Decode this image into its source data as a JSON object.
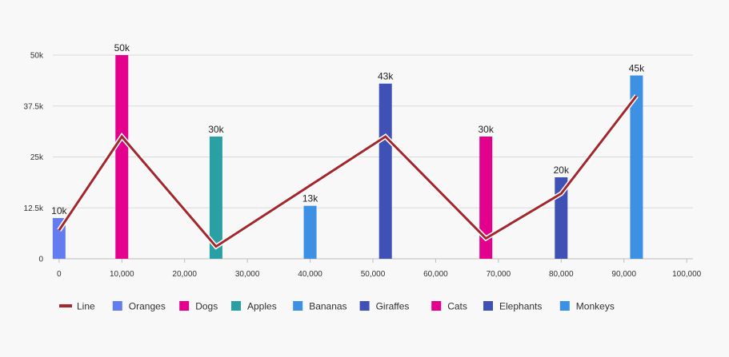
{
  "chart_data": {
    "type": "bar",
    "x_ticks": [
      0,
      10000,
      20000,
      30000,
      40000,
      50000,
      60000,
      70000,
      80000,
      90000,
      100000
    ],
    "x_tick_labels": [
      "0",
      "10,000",
      "20,000",
      "30,000",
      "40,000",
      "50,000",
      "60,000",
      "70,000",
      "80,000",
      "90,000",
      "100,000"
    ],
    "xlim": [
      -1000,
      101000
    ],
    "y_ticks": [
      0,
      12500,
      25000,
      37500,
      50000
    ],
    "y_tick_labels": [
      "0",
      "12.5k",
      "25k",
      "37.5k",
      "50k"
    ],
    "ylim": [
      0,
      50000
    ],
    "grid": true,
    "legend_position": "bottom-left",
    "bars": [
      {
        "name": "Oranges",
        "x": 0,
        "value": 10000,
        "label": "10k",
        "color": "#637cef"
      },
      {
        "name": "Dogs",
        "x": 10000,
        "value": 50000,
        "label": "50k",
        "color": "#e3008c"
      },
      {
        "name": "Apples",
        "x": 25000,
        "value": 30000,
        "label": "30k",
        "color": "#2aa0a4"
      },
      {
        "name": "Bananas",
        "x": 40000,
        "value": 13000,
        "label": "13k",
        "color": "#3c91e5"
      },
      {
        "name": "Giraffes",
        "x": 52000,
        "value": 43000,
        "label": "43k",
        "color": "#3f51b5"
      },
      {
        "name": "Cats",
        "x": 68000,
        "value": 30000,
        "label": "30k",
        "color": "#e3008c"
      },
      {
        "name": "Elephants",
        "x": 80000,
        "value": 20000,
        "label": "20k",
        "color": "#3f51b5"
      },
      {
        "name": "Monkeys",
        "x": 92000,
        "value": 45000,
        "label": "45k",
        "color": "#3c91e5"
      }
    ],
    "line": {
      "name": "Line",
      "color": "#a4262c",
      "points": [
        {
          "x": 0,
          "y": 7000
        },
        {
          "x": 10000,
          "y": 30000
        },
        {
          "x": 25000,
          "y": 3000
        },
        {
          "x": 52000,
          "y": 30000
        },
        {
          "x": 68000,
          "y": 5000
        },
        {
          "x": 80000,
          "y": 16000
        },
        {
          "x": 92000,
          "y": 40000
        }
      ]
    },
    "legend": [
      {
        "label": "Line",
        "color": "#a4262c",
        "kind": "line"
      },
      {
        "label": "Oranges",
        "color": "#637cef",
        "kind": "box"
      },
      {
        "label": "Dogs",
        "color": "#e3008c",
        "kind": "box"
      },
      {
        "label": "Apples",
        "color": "#2aa0a4",
        "kind": "box"
      },
      {
        "label": "Bananas",
        "color": "#3c91e5",
        "kind": "box"
      },
      {
        "label": "Giraffes",
        "color": "#3f51b5",
        "kind": "box"
      },
      {
        "label": "Cats",
        "color": "#e3008c",
        "kind": "box"
      },
      {
        "label": "Elephants",
        "color": "#3f51b5",
        "kind": "box"
      },
      {
        "label": "Monkeys",
        "color": "#3c91e5",
        "kind": "box"
      }
    ]
  }
}
